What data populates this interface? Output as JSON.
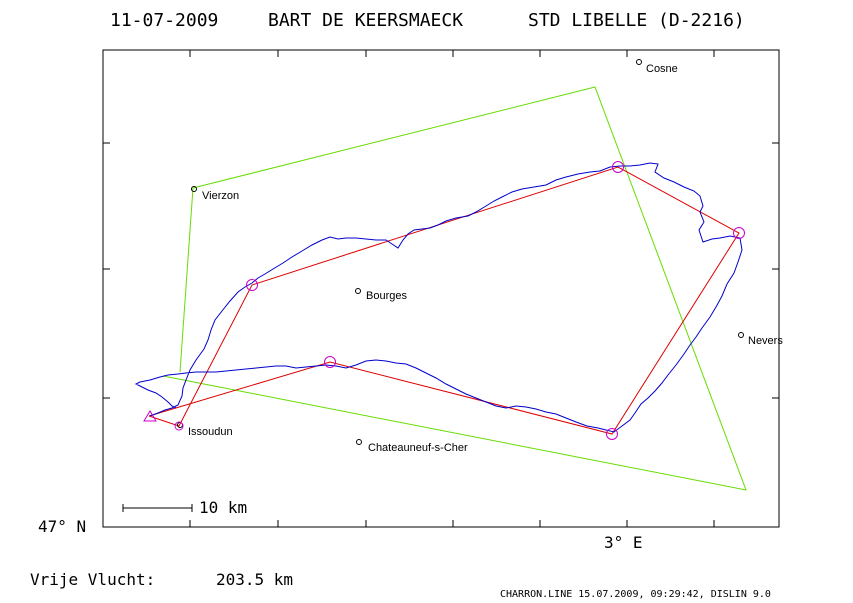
{
  "header": {
    "date": "11-07-2009",
    "pilot": "BART DE KEERSMAECK",
    "glider": "STD LIBELLE (D-2216)"
  },
  "axes": {
    "lat_label": "47° N",
    "lon_label": "3° E"
  },
  "scale_bar": {
    "label": "10 km"
  },
  "cities": [
    {
      "name": "Cosne"
    },
    {
      "name": "Vierzon"
    },
    {
      "name": "Bourges"
    },
    {
      "name": "Nevers"
    },
    {
      "name": "Issoudun"
    },
    {
      "name": "Chateauneuf-s-Cher"
    }
  ],
  "result": {
    "label": "Vrije Vlucht:",
    "distance": "203.5 km"
  },
  "footer": {
    "credit": "CHARRON.LINE 15.07.2009, 09:29:42, DISLIN 9.0"
  },
  "colors": {
    "track": "#0000cc",
    "task": "#dd0000",
    "sector": "#66dd00",
    "turnpoint": "#cc00cc",
    "frame": "#000000"
  }
}
